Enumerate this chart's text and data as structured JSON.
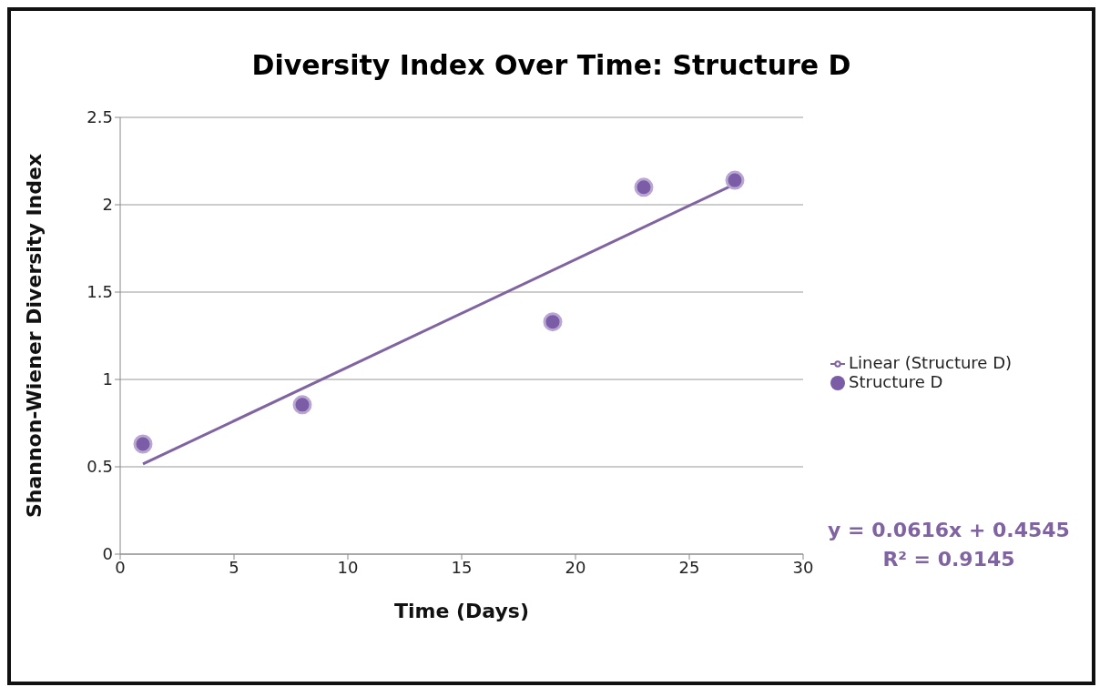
{
  "chart_data": {
    "type": "scatter",
    "title": "Diversity Index Over Time: Structure D",
    "xlabel": "Time (Days)",
    "ylabel": "Shannon-Wiener Diversity Index",
    "series": [
      {
        "name": "Structure D",
        "color": "#7b5ca6",
        "x": [
          1,
          8,
          19,
          23,
          27
        ],
        "values": [
          0.63,
          0.855,
          1.33,
          2.1,
          2.14
        ]
      },
      {
        "name": "Linear (Structure D)",
        "type": "line",
        "marker": "none",
        "color": "#8064a2",
        "x": [
          1,
          27
        ],
        "values": [
          0.516,
          2.118
        ]
      }
    ],
    "xlim": [
      0,
      30
    ],
    "xticks": [
      0,
      5,
      10,
      15,
      20,
      25,
      30
    ],
    "ylim": [
      0,
      2.5
    ],
    "yticks": [
      0,
      0.5,
      1,
      1.5,
      2,
      2.5
    ],
    "grid": "y",
    "legend": "right",
    "marker": "circle",
    "line_style": "solid",
    "annotations": [
      "y = 0.0616x + 0.4545",
      "R² = 0.9145"
    ]
  }
}
